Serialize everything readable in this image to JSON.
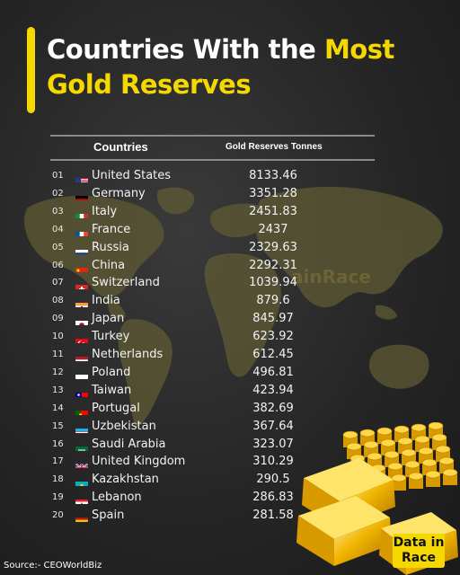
{
  "title": {
    "line1_plain": "Countries With the ",
    "line1_highlight": "Most",
    "line2_highlight": "Gold Reserves"
  },
  "colors": {
    "accent": "#f5d800",
    "background": "#262626",
    "map": "#6b6438"
  },
  "table": {
    "header_countries": "Countries",
    "header_value": "Gold Reserves Tonnes"
  },
  "chart_data": {
    "type": "table",
    "title": "Countries With the Most Gold Reserves",
    "columns": [
      "Countries",
      "Gold Reserves Tonnes"
    ],
    "rows": [
      {
        "rank": "01",
        "country": "United States",
        "value": "8133.46",
        "flag": "us-flag-icon"
      },
      {
        "rank": "02",
        "country": "Germany",
        "value": "3351.28",
        "flag": "germany-flag-icon"
      },
      {
        "rank": "03",
        "country": "Italy",
        "value": "2451.83",
        "flag": "italy-flag-icon"
      },
      {
        "rank": "04",
        "country": "France",
        "value": "2437",
        "flag": "france-flag-icon"
      },
      {
        "rank": "05",
        "country": "Russia",
        "value": "2329.63",
        "flag": "russia-flag-icon"
      },
      {
        "rank": "06",
        "country": "China",
        "value": "2292.31",
        "flag": "china-flag-icon"
      },
      {
        "rank": "07",
        "country": "Switzerland",
        "value": "1039.94",
        "flag": "switzerland-flag-icon"
      },
      {
        "rank": "08",
        "country": "India",
        "value": "879.6",
        "flag": "india-flag-icon"
      },
      {
        "rank": "09",
        "country": "Japan",
        "value": "845.97",
        "flag": "japan-flag-icon"
      },
      {
        "rank": "10",
        "country": "Turkey",
        "value": "623.92",
        "flag": "turkey-flag-icon"
      },
      {
        "rank": "11",
        "country": "Netherlands",
        "value": "612.45",
        "flag": "netherlands-flag-icon"
      },
      {
        "rank": "12",
        "country": "Poland",
        "value": "496.81",
        "flag": "poland-flag-icon"
      },
      {
        "rank": "13",
        "country": "Taiwan",
        "value": "423.94",
        "flag": "taiwan-flag-icon"
      },
      {
        "rank": "14",
        "country": "Portugal",
        "value": "382.69",
        "flag": "portugal-flag-icon"
      },
      {
        "rank": "15",
        "country": "Uzbekistan",
        "value": "367.64",
        "flag": "uzbekistan-flag-icon"
      },
      {
        "rank": "16",
        "country": "Saudi Arabia",
        "value": "323.07",
        "flag": "saudi-arabia-flag-icon"
      },
      {
        "rank": "17",
        "country": "United Kingdom",
        "value": "310.29",
        "flag": "uk-flag-icon"
      },
      {
        "rank": "18",
        "country": "Kazakhstan",
        "value": "290.5",
        "flag": "kazakhstan-flag-icon"
      },
      {
        "rank": "19",
        "country": "Lebanon",
        "value": "286.83",
        "flag": "lebanon-flag-icon"
      },
      {
        "rank": "20",
        "country": "Spain",
        "value": "281.58",
        "flag": "spain-flag-icon"
      }
    ]
  },
  "watermark": "ainRace",
  "logo": {
    "line1": "Data in",
    "line2": "Race"
  },
  "source": "Source:- CEOWorldBiz"
}
